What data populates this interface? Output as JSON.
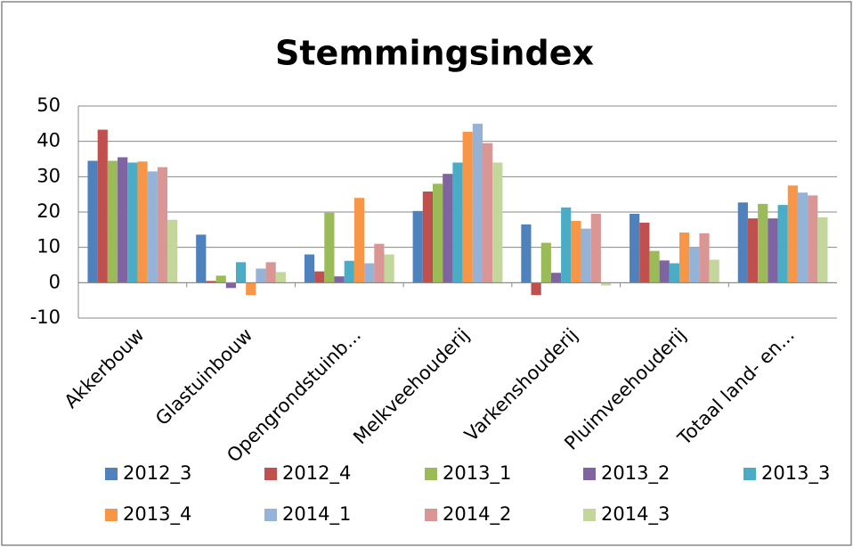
{
  "chart_data": {
    "type": "bar",
    "title": "Stemmingsindex",
    "categories": [
      "Akkerbouw",
      "Glastuinbouw",
      "Opengrondstuinb...",
      "Melkveehouderij",
      "Varkenshouderij",
      "Pluimveehouderij",
      "Totaal land- en..."
    ],
    "series": [
      {
        "name": "2012_3",
        "color": "#4F81BD",
        "values": [
          34.5,
          13.6,
          8,
          20.3,
          16.5,
          19.5,
          22.7
        ]
      },
      {
        "name": "2012_4",
        "color": "#C0504D",
        "values": [
          43.3,
          0.5,
          3.2,
          25.8,
          -3.5,
          17,
          18.2
        ]
      },
      {
        "name": "2013_1",
        "color": "#9BBB59",
        "values": [
          34.5,
          2,
          19.8,
          28,
          11.3,
          9,
          22.3
        ]
      },
      {
        "name": "2013_2",
        "color": "#8064A2",
        "values": [
          35.5,
          -1.5,
          1.8,
          30.8,
          2.8,
          6.3,
          18.2
        ]
      },
      {
        "name": "2013_3",
        "color": "#4BACC6",
        "values": [
          34,
          5.8,
          6.2,
          34,
          21.3,
          5.5,
          22
        ]
      },
      {
        "name": "2013_4",
        "color": "#F79646",
        "values": [
          34.3,
          -3.5,
          24,
          42.7,
          17.5,
          14.2,
          27.5
        ]
      },
      {
        "name": "2014_1",
        "color": "#95B3D7",
        "values": [
          31.5,
          4,
          5.5,
          45,
          15.3,
          10,
          25.5
        ]
      },
      {
        "name": "2014_2",
        "color": "#D99694",
        "values": [
          32.7,
          5.8,
          11,
          39.5,
          19.5,
          14,
          24.7
        ]
      },
      {
        "name": "2014_3",
        "color": "#C3D69B",
        "values": [
          17.8,
          3,
          8,
          34,
          -0.8,
          6.5,
          18.5
        ]
      }
    ],
    "ylim": [
      -10,
      50
    ],
    "yticks": [
      -10,
      0,
      10,
      20,
      30,
      40,
      50
    ],
    "grid": true,
    "legend": "bottom"
  }
}
